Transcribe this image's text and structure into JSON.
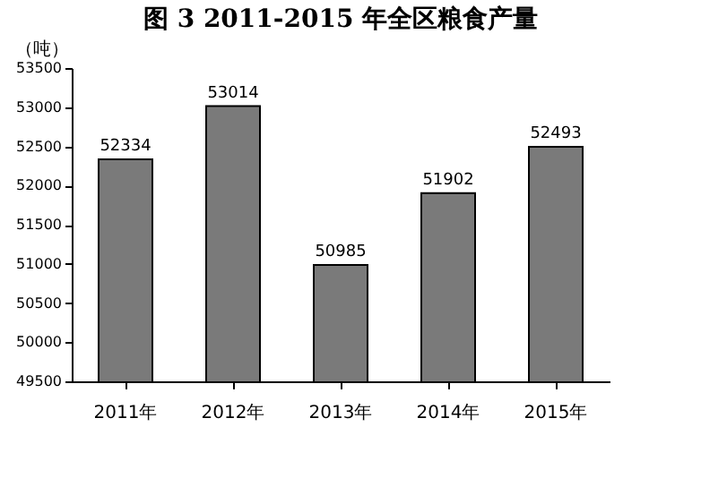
{
  "chart_data": {
    "type": "bar",
    "title": "图 3 2011-2015 年全区粮食产量",
    "ylabel": "（吨）",
    "categories": [
      "2011年",
      "2012年",
      "2013年",
      "2014年",
      "2015年"
    ],
    "values": [
      52334,
      53014,
      50985,
      51902,
      52493
    ],
    "color": "#7a7a7a",
    "ylim": [
      49500,
      53500
    ],
    "yticks": [
      49500,
      50000,
      50500,
      51000,
      51500,
      52000,
      52500,
      53000,
      53500
    ],
    "data_labels": true,
    "grid": false
  }
}
